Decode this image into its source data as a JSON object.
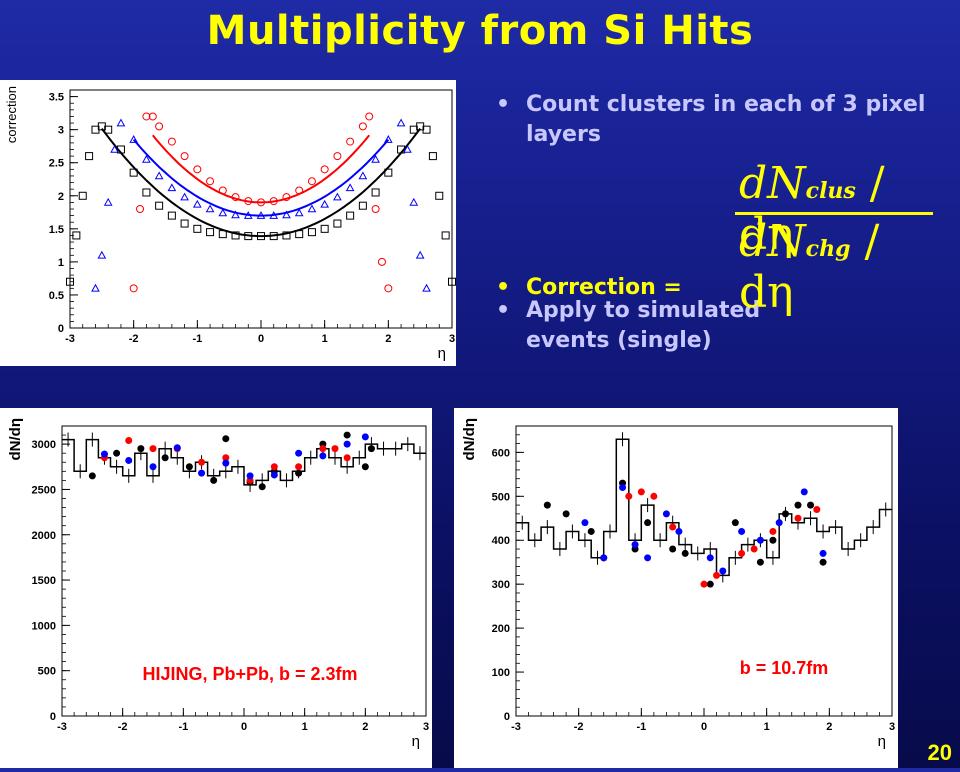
{
  "slide": {
    "title": "Multiplicity from Si Hits",
    "page_number": "20",
    "bullets": [
      "Count clusters in each of 3 pixel layers",
      "Correction =",
      "Apply to simulated events (single)"
    ],
    "formula": {
      "numerator_main": "dN",
      "numerator_sub": "clus",
      "numerator_tail": " / dη",
      "denominator_main": "dN",
      "denominator_sub": "chg",
      "denominator_tail": " / dη"
    },
    "colors": {
      "title": "#ffff00",
      "bullet_text": "#c8c8ff",
      "background": "#141c86"
    }
  },
  "chart_data": [
    {
      "type": "scatter",
      "title": "",
      "xlabel": "η",
      "ylabel": "correction",
      "xlim": [
        -3,
        3
      ],
      "ylim": [
        0,
        3.6
      ],
      "xticks": [
        -3,
        -2,
        -1,
        0,
        1,
        2,
        3
      ],
      "yticks": [
        0,
        0.5,
        1,
        1.5,
        2,
        2.5,
        3,
        3.5
      ],
      "grid": false,
      "series": [
        {
          "marker": "square",
          "color": "#000000",
          "x": [
            -3.0,
            -2.9,
            -2.8,
            -2.7,
            -2.6,
            -2.5,
            -2.4,
            -2.2,
            -2.0,
            -1.8,
            -1.6,
            -1.4,
            -1.2,
            -1.0,
            -0.8,
            -0.6,
            -0.4,
            -0.2,
            0.0,
            0.2,
            0.4,
            0.6,
            0.8,
            1.0,
            1.2,
            1.4,
            1.6,
            1.8,
            2.0,
            2.2,
            2.4,
            2.5,
            2.6,
            2.7,
            2.8,
            2.9,
            3.0
          ],
          "y": [
            0.7,
            1.4,
            2.0,
            2.6,
            3.0,
            3.05,
            3.0,
            2.7,
            2.35,
            2.05,
            1.85,
            1.7,
            1.58,
            1.5,
            1.45,
            1.42,
            1.4,
            1.39,
            1.39,
            1.39,
            1.4,
            1.42,
            1.45,
            1.5,
            1.58,
            1.7,
            1.85,
            2.05,
            2.35,
            2.7,
            3.0,
            3.05,
            3.0,
            2.6,
            2.0,
            1.4,
            0.7
          ]
        },
        {
          "marker": "triangle",
          "color": "#0000ff",
          "x": [
            -2.6,
            -2.5,
            -2.4,
            -2.3,
            -2.2,
            -2.0,
            -1.8,
            -1.6,
            -1.4,
            -1.2,
            -1.0,
            -0.8,
            -0.6,
            -0.4,
            -0.2,
            0.0,
            0.2,
            0.4,
            0.6,
            0.8,
            1.0,
            1.2,
            1.4,
            1.6,
            1.8,
            2.0,
            2.2,
            2.3,
            2.4,
            2.5,
            2.6
          ],
          "y": [
            0.6,
            1.1,
            1.9,
            2.7,
            3.1,
            2.85,
            2.55,
            2.3,
            2.12,
            1.98,
            1.87,
            1.8,
            1.74,
            1.71,
            1.7,
            1.7,
            1.7,
            1.71,
            1.74,
            1.8,
            1.87,
            1.98,
            2.12,
            2.3,
            2.55,
            2.85,
            3.1,
            2.7,
            1.9,
            1.1,
            0.6
          ]
        },
        {
          "marker": "circle",
          "color": "#ff0000",
          "x": [
            -2.0,
            -1.9,
            -1.8,
            -1.7,
            -1.6,
            -1.4,
            -1.2,
            -1.0,
            -0.8,
            -0.6,
            -0.4,
            -0.2,
            0.0,
            0.2,
            0.4,
            0.6,
            0.8,
            1.0,
            1.2,
            1.4,
            1.6,
            1.7,
            1.8,
            1.9,
            2.0
          ],
          "y": [
            0.6,
            1.8,
            3.2,
            3.2,
            3.05,
            2.82,
            2.6,
            2.4,
            2.22,
            2.08,
            1.98,
            1.92,
            1.9,
            1.92,
            1.98,
            2.08,
            2.22,
            2.4,
            2.6,
            2.82,
            3.05,
            3.2,
            1.8,
            1.0,
            0.6
          ]
        }
      ],
      "fit_curves": [
        {
          "color": "#000000",
          "x_range": [
            -2.5,
            2.5
          ]
        },
        {
          "color": "#0000ff",
          "x_range": [
            -2.0,
            2.0
          ]
        },
        {
          "color": "#ff0000",
          "x_range": [
            -1.7,
            1.7
          ]
        }
      ]
    },
    {
      "type": "scatter",
      "title": "",
      "annotation": "HIJING, Pb+Pb, b = 2.3fm",
      "xlabel": "η",
      "ylabel": "dN/dη",
      "xlim": [
        -3,
        3
      ],
      "ylim": [
        0,
        3200
      ],
      "xticks": [
        -3,
        -2,
        -1,
        0,
        1,
        2,
        3
      ],
      "yticks": [
        0,
        500,
        1000,
        1500,
        2000,
        2500,
        3000
      ],
      "grid": false,
      "series": [
        {
          "name": "histogram",
          "type": "step",
          "color": "#000000",
          "x": [
            -3.0,
            -2.8,
            -2.6,
            -2.4,
            -2.2,
            -2.0,
            -1.8,
            -1.6,
            -1.4,
            -1.2,
            -1.0,
            -0.8,
            -0.6,
            -0.4,
            -0.2,
            0.0,
            0.2,
            0.4,
            0.6,
            0.8,
            1.0,
            1.2,
            1.4,
            1.6,
            1.8,
            2.0,
            2.2,
            2.4,
            2.6,
            2.8
          ],
          "y": [
            3050,
            2700,
            3050,
            2850,
            2750,
            2650,
            2900,
            2650,
            2950,
            2850,
            2700,
            2800,
            2650,
            2700,
            2750,
            2550,
            2600,
            2700,
            2600,
            2700,
            2850,
            2950,
            2850,
            2750,
            2850,
            3000,
            2950,
            2950,
            3000,
            2900
          ]
        },
        {
          "name": "",
          "color": "#000000",
          "marker": "circle",
          "x": [
            -2.5,
            -2.1,
            -1.7,
            -1.3,
            -0.9,
            -0.5,
            -0.3,
            0.1,
            0.3,
            0.5,
            0.9,
            1.3,
            1.7,
            2.0,
            2.1
          ],
          "y": [
            2650,
            2900,
            2950,
            2850,
            2750,
            2600,
            3060,
            2580,
            2530,
            2700,
            2680,
            3000,
            3100,
            2750,
            2950
          ]
        },
        {
          "name": "",
          "color": "#ff0000",
          "marker": "circle",
          "x": [
            -2.3,
            -1.9,
            -1.5,
            -1.1,
            -0.7,
            -0.3,
            0.1,
            0.5,
            0.9,
            1.3,
            1.5,
            1.7
          ],
          "y": [
            2850,
            3040,
            2950,
            2950,
            2800,
            2850,
            2600,
            2750,
            2750,
            2950,
            2950,
            2850
          ]
        },
        {
          "name": "",
          "color": "#0000ff",
          "marker": "circle",
          "x": [
            -2.3,
            -1.9,
            -1.5,
            -1.1,
            -0.7,
            -0.3,
            0.1,
            0.5,
            0.9,
            1.3,
            1.7,
            2.0
          ],
          "y": [
            2890,
            2820,
            2750,
            2960,
            2680,
            2790,
            2650,
            2660,
            2900,
            2870,
            3000,
            3080
          ]
        }
      ]
    },
    {
      "type": "scatter",
      "title": "",
      "annotation": "b = 10.7fm",
      "xlabel": "η",
      "ylabel": "dN/dη",
      "xlim": [
        -3,
        3
      ],
      "ylim": [
        0,
        660
      ],
      "xticks": [
        -3,
        -2,
        -1,
        0,
        1,
        2,
        3
      ],
      "yticks": [
        0,
        100,
        200,
        300,
        400,
        500,
        600
      ],
      "grid": false,
      "series": [
        {
          "name": "histogram",
          "type": "step",
          "color": "#000000",
          "x": [
            -3.0,
            -2.8,
            -2.6,
            -2.4,
            -2.2,
            -2.0,
            -1.8,
            -1.6,
            -1.4,
            -1.2,
            -1.0,
            -0.8,
            -0.6,
            -0.4,
            -0.2,
            0.0,
            0.2,
            0.4,
            0.6,
            0.8,
            1.0,
            1.2,
            1.4,
            1.6,
            1.8,
            2.0,
            2.2,
            2.4,
            2.6,
            2.8
          ],
          "y": [
            440,
            400,
            430,
            380,
            420,
            400,
            360,
            420,
            630,
            400,
            480,
            400,
            440,
            390,
            370,
            380,
            320,
            360,
            390,
            400,
            360,
            460,
            440,
            450,
            420,
            430,
            380,
            400,
            430,
            470
          ]
        },
        {
          "name": "",
          "color": "#000000",
          "marker": "circle",
          "x": [
            -2.5,
            -2.2,
            -1.8,
            -1.6,
            -1.3,
            -1.1,
            -0.9,
            -0.5,
            -0.3,
            0.1,
            0.5,
            0.9,
            1.1,
            1.3,
            1.5,
            1.7,
            1.9
          ],
          "y": [
            480,
            460,
            420,
            360,
            530,
            380,
            440,
            380,
            370,
            300,
            440,
            350,
            400,
            460,
            480,
            480,
            350
          ]
        },
        {
          "name": "",
          "color": "#ff0000",
          "marker": "circle",
          "x": [
            -1.2,
            -1.0,
            -0.8,
            -0.5,
            0.0,
            0.2,
            0.6,
            0.8,
            1.1,
            1.5,
            1.8
          ],
          "y": [
            500,
            510,
            500,
            430,
            300,
            320,
            370,
            380,
            420,
            450,
            470
          ]
        },
        {
          "name": "",
          "color": "#0000ff",
          "marker": "circle",
          "x": [
            -1.9,
            -1.6,
            -1.3,
            -1.1,
            -0.9,
            -0.6,
            -0.4,
            0.1,
            0.3,
            0.6,
            0.9,
            1.2,
            1.6,
            1.9
          ],
          "y": [
            440,
            360,
            520,
            390,
            360,
            460,
            420,
            360,
            330,
            420,
            400,
            440,
            510,
            370
          ]
        }
      ]
    }
  ]
}
